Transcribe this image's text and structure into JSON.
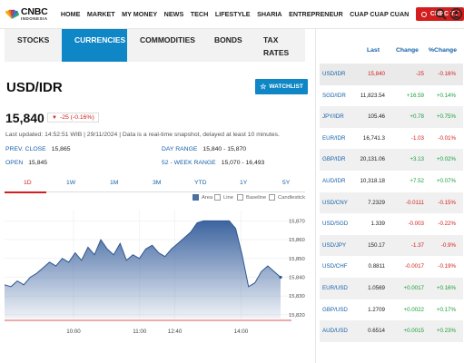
{
  "header": {
    "logo_main": "CNBC",
    "logo_sub": "INDONESIA",
    "nav": [
      "HOME",
      "MARKET",
      "MY MONEY",
      "NEWS",
      "TECH",
      "LIFESTYLE",
      "SHARIA",
      "ENTREPRENEUR",
      "CUAP CUAP CUAN"
    ],
    "tv_label": "CNBC TV",
    "icons": [
      "search-icon",
      "user-icon"
    ],
    "brand_color": "#d21e1e",
    "accent_color": "#0f86c6"
  },
  "tabs": [
    "STOCKS",
    "CURRENCIES",
    "COMMODITIES",
    "BONDS",
    "TAX RATES"
  ],
  "active_tab": "CURRENCIES",
  "main": {
    "pair": "USD/IDR",
    "watchlist_label": "WATCHLIST",
    "price": "15,840",
    "change": "-25 (-0.16%)",
    "updated": "Last updated: 14:52:51 WIB | 29/11/2024 | Data is a real-time snapshot, delayed at least 10 minutes.",
    "stats": {
      "prev_close_label": "PREV. CLOSE",
      "prev_close": "15,865",
      "open_label": "OPEN",
      "open": "15,845",
      "day_range_label": "DAY RANGE",
      "day_range": "15,840 - 15,870",
      "week52_label": "52 - WEEK RANGE",
      "week52": "15,070 - 16,493"
    },
    "ranges": [
      "1D",
      "1W",
      "1M",
      "3M",
      "YTD",
      "1Y",
      "5Y"
    ],
    "active_range": "1D",
    "legend": [
      "Area",
      "Line",
      "Baseline",
      "Candlestick"
    ]
  },
  "chart_data": {
    "type": "area",
    "x_ticks": [
      "10:00",
      "11:00",
      "12:40",
      "14:00"
    ],
    "y_ticks": [
      15820,
      15830,
      15840,
      15850,
      15860,
      15870
    ],
    "ylim": [
      15818,
      15876
    ],
    "series": [
      {
        "values": [
          15836,
          15835,
          15838,
          15836,
          15840,
          15842,
          15845,
          15848,
          15846,
          15850,
          15848,
          15853,
          15849,
          15856,
          15852,
          15860,
          15855,
          15852,
          15858,
          15849,
          15852,
          15850,
          15855,
          15857,
          15853,
          15851,
          15855,
          15858,
          15861,
          15864,
          15869,
          15870,
          15870,
          15870,
          15870,
          15870,
          15866,
          15852,
          15835,
          15837,
          15843,
          15846,
          15843,
          15840
        ]
      }
    ],
    "fill_color": "#3d64a0",
    "baseline_color": "#d21e1e"
  },
  "rates_table": {
    "headers": [
      "Last",
      "Change",
      "%Change"
    ],
    "rows": [
      {
        "sym": "USD/IDR",
        "last": "15,840",
        "chg": "-25",
        "pct": "-0.16%",
        "dir": "down",
        "last_dir": "down"
      },
      {
        "sym": "SGD/IDR",
        "last": "11,823.54",
        "chg": "+16.59",
        "pct": "+0.14%",
        "dir": "up",
        "last_dir": ""
      },
      {
        "sym": "JPY/IDR",
        "last": "105.46",
        "chg": "+0.78",
        "pct": "+0.75%",
        "dir": "up",
        "last_dir": ""
      },
      {
        "sym": "EUR/IDR",
        "last": "16,741.3",
        "chg": "-1.03",
        "pct": "-0.01%",
        "dir": "down",
        "last_dir": ""
      },
      {
        "sym": "GBP/IDR",
        "last": "20,131.06",
        "chg": "+3.13",
        "pct": "+0.02%",
        "dir": "up",
        "last_dir": ""
      },
      {
        "sym": "AUD/IDR",
        "last": "10,318.18",
        "chg": "+7.52",
        "pct": "+0.07%",
        "dir": "up",
        "last_dir": ""
      },
      {
        "sym": "USD/CNY",
        "last": "7.2329",
        "chg": "-0.0111",
        "pct": "-0.15%",
        "dir": "down",
        "last_dir": ""
      },
      {
        "sym": "USD/SGD",
        "last": "1.339",
        "chg": "-0.003",
        "pct": "-0.22%",
        "dir": "down",
        "last_dir": ""
      },
      {
        "sym": "USD/JPY",
        "last": "150.17",
        "chg": "-1.37",
        "pct": "-0.9%",
        "dir": "down",
        "last_dir": ""
      },
      {
        "sym": "USD/CHF",
        "last": "0.8811",
        "chg": "-0.0017",
        "pct": "-0.19%",
        "dir": "down",
        "last_dir": ""
      },
      {
        "sym": "EUR/USD",
        "last": "1.0569",
        "chg": "+0.0017",
        "pct": "+0.16%",
        "dir": "up",
        "last_dir": ""
      },
      {
        "sym": "GBP/USD",
        "last": "1.2709",
        "chg": "+0.0022",
        "pct": "+0.17%",
        "dir": "up",
        "last_dir": ""
      },
      {
        "sym": "AUD/USD",
        "last": "0.6514",
        "chg": "+0.0015",
        "pct": "+0.23%",
        "dir": "up",
        "last_dir": ""
      }
    ]
  }
}
